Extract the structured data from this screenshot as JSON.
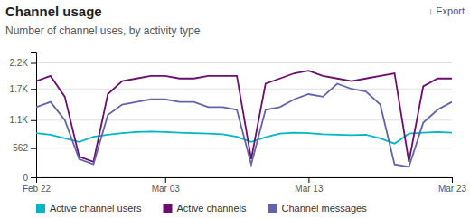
{
  "chart_data": {
    "type": "line",
    "title": "Channel usage",
    "subtitle": "Number of channel uses, by activity type",
    "annotations": [
      {
        "text": "↓ Export"
      }
    ],
    "categories": [
      "Feb 22",
      null,
      null,
      null,
      null,
      null,
      null,
      null,
      null,
      "Mar 03",
      null,
      null,
      null,
      null,
      null,
      null,
      null,
      null,
      null,
      "Mar 13",
      null,
      null,
      null,
      null,
      null,
      null,
      null,
      null,
      null,
      "Mar 23"
    ],
    "series": [
      {
        "name": "Active channel users",
        "color": "#00B7C3",
        "values": [
          850,
          820,
          750,
          680,
          780,
          820,
          850,
          870,
          880,
          870,
          860,
          850,
          840,
          830,
          780,
          680,
          770,
          840,
          860,
          850,
          830,
          820,
          810,
          820,
          750,
          650,
          840,
          860,
          870,
          860
        ]
      },
      {
        "name": "Active channels",
        "color": "#6B0F6E",
        "values": [
          1850,
          1950,
          1550,
          400,
          300,
          1600,
          1850,
          1900,
          1950,
          1950,
          1900,
          1900,
          1950,
          1950,
          1950,
          350,
          1800,
          1900,
          2000,
          2050,
          1950,
          1900,
          1850,
          1900,
          1950,
          2000,
          300,
          1750,
          1900,
          1900
        ]
      },
      {
        "name": "Channel messages",
        "color": "#6264A7",
        "values": [
          1350,
          1450,
          1100,
          350,
          250,
          1200,
          1400,
          1450,
          1500,
          1500,
          1450,
          1450,
          1350,
          1350,
          1300,
          250,
          1300,
          1350,
          1500,
          1600,
          1550,
          1800,
          1700,
          1650,
          1400,
          250,
          200,
          1050,
          1300,
          1450
        ]
      }
    ],
    "ylim": [
      0,
      2400
    ],
    "yticks": [
      0,
      562,
      {
        "value": 1100,
        "label": "1.1K"
      },
      {
        "value": 1700,
        "label": "1.7K"
      },
      {
        "value": 2200,
        "label": "2.2K"
      }
    ],
    "grid": true,
    "legend": "bottom"
  }
}
